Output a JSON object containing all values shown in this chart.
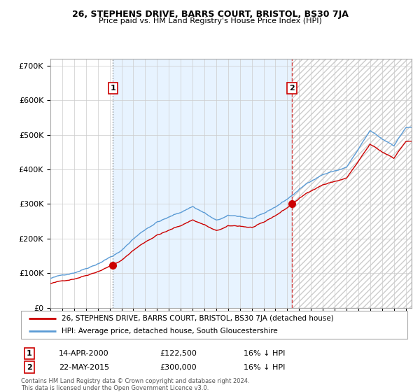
{
  "title": "26, STEPHENS DRIVE, BARRS COURT, BRISTOL, BS30 7JA",
  "subtitle": "Price paid vs. HM Land Registry's House Price Index (HPI)",
  "ylim": [
    0,
    720000
  ],
  "xlim_start": 1995.0,
  "xlim_end": 2025.5,
  "sale1_date": 2000.29,
  "sale1_price": 122500,
  "sale1_label": "1",
  "sale2_date": 2015.39,
  "sale2_price": 300000,
  "sale2_label": "2",
  "legend_line1": "26, STEPHENS DRIVE, BARRS COURT, BRISTOL, BS30 7JA (detached house)",
  "legend_line2": "HPI: Average price, detached house, South Gloucestershire",
  "annotation1": [
    "1",
    "14-APR-2000",
    "£122,500",
    "16% ↓ HPI"
  ],
  "annotation2": [
    "2",
    "22-MAY-2015",
    "£300,000",
    "16% ↓ HPI"
  ],
  "footnote1": "Contains HM Land Registry data © Crown copyright and database right 2024.",
  "footnote2": "This data is licensed under the Open Government Licence v3.0.",
  "hpi_color": "#5b9bd5",
  "sale_color": "#cc0000",
  "background_color": "#ffffff",
  "grid_color": "#cccccc",
  "shade_color": "#ddeeff",
  "hatch_color": "#cccccc"
}
